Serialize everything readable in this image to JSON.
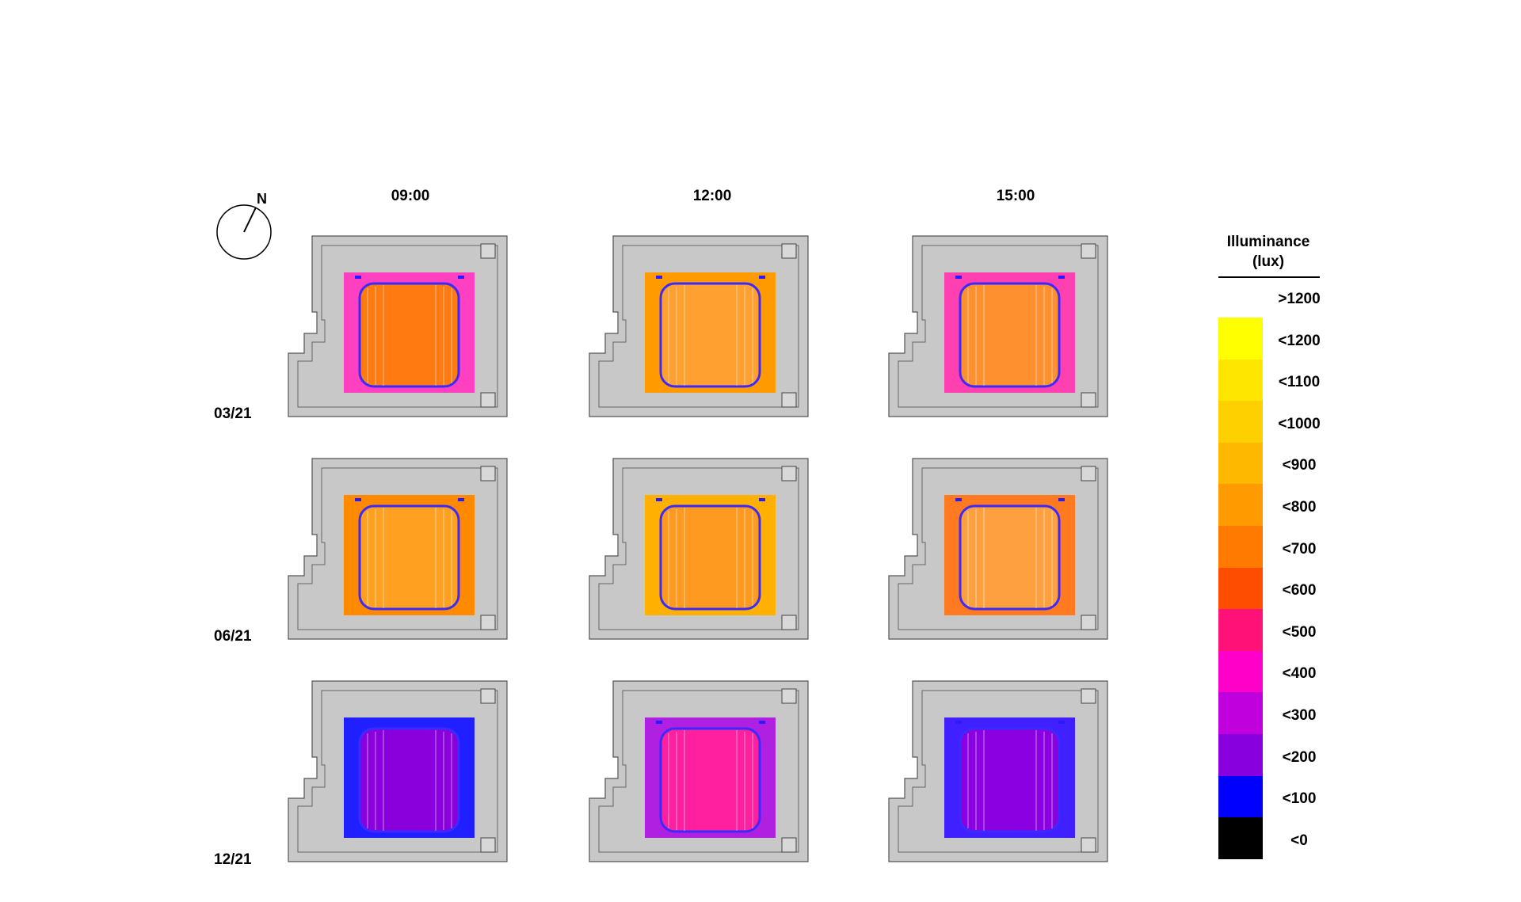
{
  "compass": {
    "north_label": "N"
  },
  "times": [
    "09:00",
    "12:00",
    "15:00"
  ],
  "dates": [
    "03/21",
    "06/21",
    "12/21"
  ],
  "legend": {
    "title_line1": "Illuminance",
    "title_line2": "(lux)",
    "labels": [
      ">1200",
      "<1200",
      "<1100",
      "<1000",
      "<900",
      "<800",
      "<700",
      "<600",
      "<500",
      "<400",
      "<300",
      "<200",
      "<100",
      "<0"
    ],
    "colors": [
      "#ffff00",
      "#ffe600",
      "#ffd000",
      "#ffb800",
      "#ff9a00",
      "#ff7a00",
      "#ff4d00",
      "#ff1177",
      "#ff00c8",
      "#c000dd",
      "#8800dd",
      "#0000ff",
      "#000000"
    ]
  },
  "maps": [
    {
      "date": "03/21",
      "time": "09:00",
      "outer": "#ff40c0",
      "center": "#ff7a10"
    },
    {
      "date": "03/21",
      "time": "12:00",
      "outer": "#ff9a00",
      "center": "#ffa030"
    },
    {
      "date": "03/21",
      "time": "15:00",
      "outer": "#ff40b0",
      "center": "#ff9030"
    },
    {
      "date": "06/21",
      "time": "09:00",
      "outer": "#ff8a00",
      "center": "#ffa020"
    },
    {
      "date": "06/21",
      "time": "12:00",
      "outer": "#ffb000",
      "center": "#ff9a20"
    },
    {
      "date": "06/21",
      "time": "15:00",
      "outer": "#ff7a20",
      "center": "#ffa040"
    },
    {
      "date": "12/21",
      "time": "09:00",
      "outer": "#2020ff",
      "center": "#8a00dd"
    },
    {
      "date": "12/21",
      "time": "12:00",
      "outer": "#b020e0",
      "center": "#ff20a0"
    },
    {
      "date": "12/21",
      "time": "15:00",
      "outer": "#4020ff",
      "center": "#8a00e0"
    }
  ]
}
